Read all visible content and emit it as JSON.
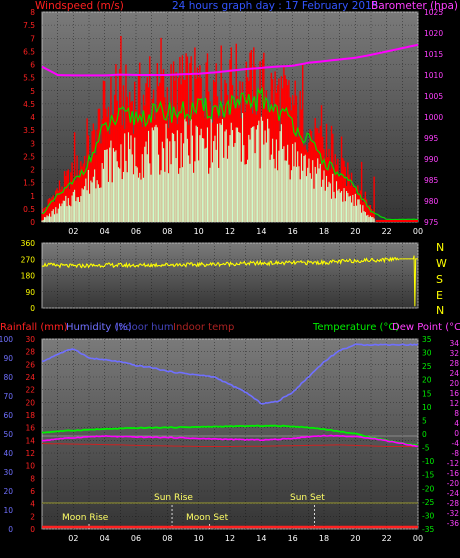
{
  "header": {
    "wind_title": "Windspeed (m/s)",
    "graph_title": "24 hours graph day : 17 February 2015",
    "baro_title": "Barometer (hpa)"
  },
  "colors": {
    "wind": "#ff0000",
    "gust": "#ff0000",
    "wind_avg": "#00dd00",
    "wind_min": "#ccffcc",
    "barometer": "#ff00ff",
    "direction": "#ffff00",
    "humidity": "#7070ff",
    "temperature": "#00ee00",
    "dewpoint": "#ff00ff",
    "rain": "#ff2222",
    "indoor_temp": "#cc2222",
    "sun_line": "#999933",
    "background": "#000000",
    "plot_top": "#7a7a7a",
    "plot_bottom": "#353535"
  },
  "compass": [
    "N",
    "W",
    "S",
    "E",
    "N"
  ],
  "lower_header": {
    "rainfall": "Rainfall (mm)",
    "humidity": "Humidity (%)",
    "indoor_hum": "Indoor hum",
    "indoor_temp": "Indoor temp",
    "temperature": "Temperature (°C)",
    "dewpoint": "Dew Point (°C)"
  },
  "annotations": {
    "moon_rise": "Moon Rise",
    "sun_rise": "Sun Rise",
    "moon_set": "Moon Set",
    "sun_set": "Sun Set"
  },
  "chart_data": [
    {
      "type": "area",
      "title": "24 hours graph day : 17 February 2015",
      "x_ticks": [
        "02",
        "04",
        "06",
        "08",
        "10",
        "12",
        "14",
        "16",
        "18",
        "20",
        "22",
        "00"
      ],
      "y_left_label": "Windspeed (m/s)",
      "y_left_ticks": [
        "0",
        "0.5",
        "1",
        "1.5",
        "2",
        "2.5",
        "3",
        "3.5",
        "4",
        "4.5",
        "5",
        "5.5",
        "6",
        "6.5",
        "7",
        "7.5",
        "8"
      ],
      "ylim_left": [
        0,
        8
      ],
      "y_right_label": "Barometer (hpa)",
      "y_right_ticks": [
        "975",
        "980",
        "985",
        "990",
        "995",
        "1000",
        "1005",
        "1010",
        "1015",
        "1020",
        "1025"
      ],
      "ylim_right": [
        975,
        1025
      ],
      "x_hours": [
        0,
        1,
        2,
        3,
        4,
        5,
        6,
        7,
        8,
        9,
        10,
        11,
        12,
        13,
        14,
        15,
        16,
        17,
        18,
        19,
        20,
        21,
        22,
        23,
        24
      ],
      "series": [
        {
          "name": "gust",
          "values": [
            0.5,
            1.6,
            2.4,
            3.4,
            5.6,
            6.0,
            6.1,
            6.2,
            6.3,
            6.5,
            6.7,
            6.8,
            6.9,
            6.8,
            6.7,
            6.3,
            5.8,
            4.6,
            3.4,
            2.6,
            2.0,
            0.7,
            0.2,
            0.2,
            0.2
          ]
        },
        {
          "name": "wind",
          "values": [
            0.3,
            1.0,
            1.5,
            2.3,
            3.6,
            4.0,
            4.0,
            4.1,
            4.2,
            4.2,
            4.3,
            4.3,
            4.4,
            4.5,
            4.7,
            4.3,
            3.8,
            3.1,
            2.3,
            1.8,
            1.3,
            0.4,
            0.1,
            0.1,
            0.1
          ]
        },
        {
          "name": "wind_min",
          "values": [
            0.1,
            0.6,
            1.2,
            1.9,
            2.8,
            3.1,
            3.2,
            3.3,
            3.6,
            3.6,
            3.6,
            3.7,
            3.8,
            3.8,
            3.9,
            3.6,
            3.1,
            2.6,
            2.0,
            1.5,
            1.0,
            0.2,
            0,
            0,
            0
          ]
        },
        {
          "name": "barometer",
          "values": [
            1012.0,
            1010.0,
            1009.9,
            1009.9,
            1009.9,
            1010.1,
            1010.0,
            1010.0,
            1010.0,
            1010.2,
            1010.3,
            1010.6,
            1011.0,
            1011.4,
            1011.7,
            1012.0,
            1012.2,
            1012.9,
            1013.3,
            1013.7,
            1014.1,
            1014.8,
            1015.6,
            1016.4,
            1017.2
          ]
        }
      ]
    },
    {
      "type": "scatter",
      "title": "Wind direction",
      "y_ticks": [
        "0",
        "90",
        "180",
        "270",
        "360"
      ],
      "ylim": [
        0,
        360
      ],
      "x_hours": [
        0,
        2,
        4,
        6,
        8,
        10,
        12,
        14,
        16,
        18,
        20,
        22,
        22.7,
        23,
        23.7,
        24
      ],
      "series": [
        {
          "name": "direction",
          "values": [
            240,
            232,
            238,
            236,
            240,
            240,
            245,
            248,
            250,
            252,
            262,
            268,
            275,
            274,
            276,
            272
          ]
        }
      ]
    },
    {
      "type": "line",
      "title": "",
      "x_ticks": [
        "02",
        "04",
        "06",
        "08",
        "10",
        "12",
        "14",
        "16",
        "18",
        "20",
        "22",
        "00"
      ],
      "y_left_ticks_rain": [
        "0",
        "2",
        "4",
        "6",
        "8",
        "10",
        "12",
        "14",
        "16",
        "18",
        "20",
        "22",
        "24",
        "26",
        "28",
        "30"
      ],
      "y_left_ticks_humidity": [
        "0",
        "10",
        "20",
        "30",
        "40",
        "50",
        "60",
        "70",
        "80",
        "90",
        "100"
      ],
      "y_right_ticks_temperature": [
        "-35",
        "-30",
        "-25",
        "-20",
        "-15",
        "-10",
        "-5",
        "0",
        "5",
        "10",
        "15",
        "20",
        "25",
        "30",
        "35"
      ],
      "y_right_ticks_dewpoint": [
        "-36",
        "-32",
        "-28",
        "-24",
        "-20",
        "-16",
        "-12",
        "-8",
        "-4",
        "0",
        "4",
        "8",
        "12",
        "16",
        "20",
        "24",
        "28",
        "32",
        "34"
      ],
      "ylim_humidity": [
        0,
        100
      ],
      "ylim_temperature": [
        -35,
        35
      ],
      "x_hours": [
        0,
        1,
        2,
        3,
        4,
        5,
        6,
        7,
        8,
        9,
        10,
        11,
        12,
        13,
        14,
        15,
        16,
        17,
        18,
        19,
        20,
        21,
        22,
        23,
        24
      ],
      "series": [
        {
          "name": "humidity",
          "values": [
            88,
            92,
            95,
            90,
            89,
            88,
            86,
            85,
            83,
            82,
            81,
            80,
            76,
            72,
            66,
            67,
            72,
            80,
            88,
            94,
            97,
            97,
            97,
            97,
            97
          ]
        },
        {
          "name": "temperature",
          "values": [
            0.5,
            1.0,
            1.3,
            1.6,
            1.8,
            2.0,
            2.2,
            2.3,
            2.4,
            2.5,
            2.6,
            2.7,
            2.8,
            2.9,
            3.0,
            3.0,
            2.8,
            2.4,
            1.8,
            0.9,
            0.1,
            -1.2,
            -2.3,
            -3.4,
            -4.2
          ]
        },
        {
          "name": "dewpoint",
          "values": [
            -2.5,
            -1.8,
            -1.4,
            -1.0,
            -0.8,
            -1.0,
            -1.1,
            -1.2,
            -1.3,
            -1.4,
            -1.7,
            -1.8,
            -2.0,
            -2.1,
            -2.2,
            -2.0,
            -1.6,
            -1.0,
            -0.6,
            -0.7,
            -1.0,
            -1.5,
            -2.5,
            -3.5,
            -4.6
          ]
        },
        {
          "name": "indoor_temp",
          "values": [
            -3.5,
            -3.6,
            -3.7,
            -3.8,
            -3.9,
            -4.0,
            -4.2,
            -4.3,
            -4.4,
            -4.5,
            -4.6,
            -4.6,
            -4.6,
            -4.5,
            -4.5,
            -4.4,
            -4.3,
            -4.2,
            -4.1,
            -4.0,
            -4.2,
            -4.4,
            -4.6,
            -4.6,
            -4.6
          ]
        },
        {
          "name": "rain",
          "values": [
            0,
            0,
            0,
            0,
            0,
            0,
            0,
            0,
            0,
            0,
            0,
            0,
            0,
            0,
            0,
            0,
            0,
            0,
            0,
            0,
            0,
            0,
            0,
            0,
            0
          ]
        }
      ],
      "events_hours": {
        "moon_rise": 3.0,
        "sun_rise": 8.3,
        "moon_set": 10.7,
        "sun_set": 17.4
      }
    }
  ]
}
